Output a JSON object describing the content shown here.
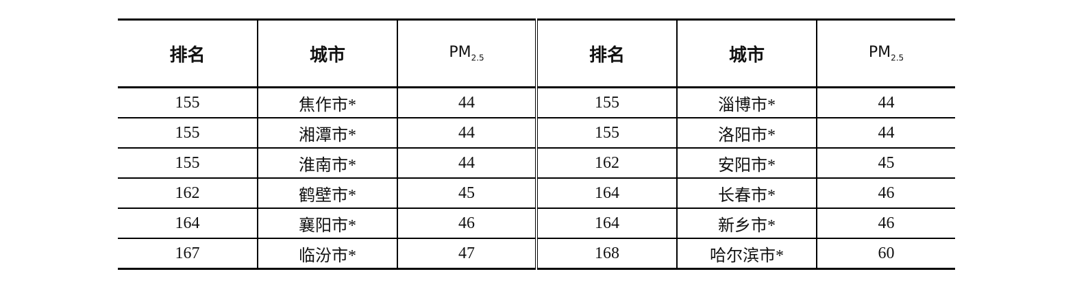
{
  "table": {
    "headers": [
      "排名",
      "城市",
      "PM",
      "排名",
      "城市",
      "PM"
    ],
    "pm_subscript": "2.5",
    "rows": [
      [
        "155",
        "焦作市*",
        "44",
        "155",
        "淄博市*",
        "44"
      ],
      [
        "155",
        "湘潭市*",
        "44",
        "155",
        "洛阳市*",
        "44"
      ],
      [
        "155",
        "淮南市*",
        "44",
        "162",
        "安阳市*",
        "45"
      ],
      [
        "162",
        "鹤壁市*",
        "45",
        "164",
        "长春市*",
        "46"
      ],
      [
        "164",
        "襄阳市*",
        "46",
        "164",
        "新乡市*",
        "46"
      ],
      [
        "167",
        "临汾市*",
        "47",
        "168",
        "哈尔滨市*",
        "60"
      ]
    ]
  }
}
